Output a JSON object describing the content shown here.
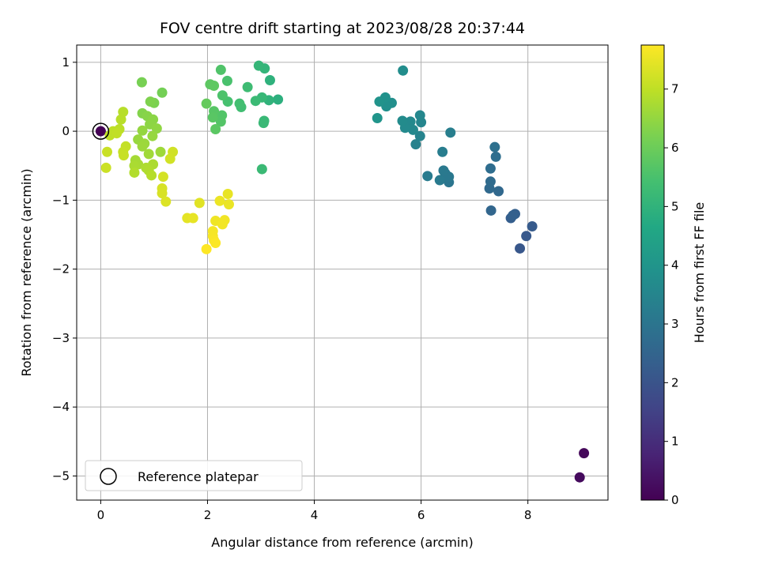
{
  "chart_data": {
    "type": "scatter",
    "title": "FOV centre drift starting at 2023/08/28 20:37:44",
    "xlabel": "Angular distance from reference (arcmin)",
    "ylabel": "Rotation from reference (arcmin)",
    "xlim": [
      -0.45,
      9.5
    ],
    "ylim": [
      -5.35,
      1.25
    ],
    "xticks": [
      "0",
      "2",
      "4",
      "6",
      "8"
    ],
    "yticks": [
      "1",
      "0",
      "−1",
      "−2",
      "−3",
      "−4",
      "−5"
    ],
    "grid": true,
    "colormap": "viridis",
    "colorbar": {
      "label": "Hours from first FF file",
      "range": [
        0,
        7.75
      ],
      "ticks": [
        "0",
        "1",
        "2",
        "3",
        "4",
        "5",
        "6",
        "7"
      ]
    },
    "legend": {
      "label": "Reference platepar",
      "placement": "lower-left"
    },
    "reference_point": {
      "x": 0,
      "y": 0
    },
    "points": [
      {
        "x": 0.0,
        "y": 0.0,
        "h": 0.0
      },
      {
        "x": 9.05,
        "y": -4.67,
        "h": 0.15
      },
      {
        "x": 8.97,
        "y": -5.02,
        "h": 0.2
      },
      {
        "x": 7.85,
        "y": -1.7,
        "h": 2.1
      },
      {
        "x": 7.97,
        "y": -1.52,
        "h": 2.15
      },
      {
        "x": 8.08,
        "y": -1.38,
        "h": 2.2
      },
      {
        "x": 7.68,
        "y": -1.26,
        "h": 2.3
      },
      {
        "x": 7.76,
        "y": -1.2,
        "h": 2.35
      },
      {
        "x": 7.72,
        "y": -1.22,
        "h": 2.4
      },
      {
        "x": 7.31,
        "y": -1.15,
        "h": 2.55
      },
      {
        "x": 7.45,
        "y": -0.87,
        "h": 2.6
      },
      {
        "x": 7.28,
        "y": -0.83,
        "h": 2.65
      },
      {
        "x": 7.3,
        "y": -0.73,
        "h": 2.7
      },
      {
        "x": 7.3,
        "y": -0.54,
        "h": 2.75
      },
      {
        "x": 7.4,
        "y": -0.37,
        "h": 2.8
      },
      {
        "x": 7.38,
        "y": -0.23,
        "h": 2.85
      },
      {
        "x": 6.52,
        "y": -0.74,
        "h": 3.0
      },
      {
        "x": 6.45,
        "y": -0.61,
        "h": 3.05
      },
      {
        "x": 6.52,
        "y": -0.66,
        "h": 3.1
      },
      {
        "x": 6.42,
        "y": -0.57,
        "h": 3.12
      },
      {
        "x": 6.35,
        "y": -0.71,
        "h": 3.15
      },
      {
        "x": 6.12,
        "y": -0.65,
        "h": 3.2
      },
      {
        "x": 6.4,
        "y": -0.3,
        "h": 3.25
      },
      {
        "x": 6.55,
        "y": -0.02,
        "h": 3.3
      },
      {
        "x": 5.9,
        "y": -0.19,
        "h": 3.4
      },
      {
        "x": 5.98,
        "y": -0.07,
        "h": 3.45
      },
      {
        "x": 6.0,
        "y": 0.13,
        "h": 3.5
      },
      {
        "x": 5.98,
        "y": 0.23,
        "h": 3.55
      },
      {
        "x": 5.85,
        "y": 0.02,
        "h": 3.6
      },
      {
        "x": 5.8,
        "y": 0.14,
        "h": 3.62
      },
      {
        "x": 5.7,
        "y": 0.05,
        "h": 3.65
      },
      {
        "x": 5.65,
        "y": 0.15,
        "h": 3.7
      },
      {
        "x": 5.66,
        "y": 0.88,
        "h": 3.75
      },
      {
        "x": 5.45,
        "y": 0.41,
        "h": 3.8
      },
      {
        "x": 5.35,
        "y": 0.36,
        "h": 3.85
      },
      {
        "x": 5.33,
        "y": 0.49,
        "h": 3.9
      },
      {
        "x": 5.22,
        "y": 0.43,
        "h": 3.95
      },
      {
        "x": 5.18,
        "y": 0.19,
        "h": 4.0
      },
      {
        "x": 3.32,
        "y": 0.46,
        "h": 4.9
      },
      {
        "x": 3.17,
        "y": 0.74,
        "h": 4.95
      },
      {
        "x": 3.15,
        "y": 0.45,
        "h": 5.0
      },
      {
        "x": 3.07,
        "y": 0.91,
        "h": 5.05
      },
      {
        "x": 2.96,
        "y": 0.95,
        "h": 5.1
      },
      {
        "x": 3.02,
        "y": 0.49,
        "h": 5.15
      },
      {
        "x": 3.06,
        "y": 0.15,
        "h": 5.18
      },
      {
        "x": 3.05,
        "y": 0.12,
        "h": 5.2
      },
      {
        "x": 3.02,
        "y": -0.55,
        "h": 5.22
      },
      {
        "x": 2.9,
        "y": 0.44,
        "h": 5.25
      },
      {
        "x": 2.75,
        "y": 0.64,
        "h": 5.3
      },
      {
        "x": 2.63,
        "y": 0.35,
        "h": 5.35
      },
      {
        "x": 2.6,
        "y": 0.4,
        "h": 5.4
      },
      {
        "x": 2.38,
        "y": 0.43,
        "h": 5.45
      },
      {
        "x": 2.37,
        "y": 0.73,
        "h": 5.5
      },
      {
        "x": 2.28,
        "y": 0.52,
        "h": 5.55
      },
      {
        "x": 2.25,
        "y": 0.89,
        "h": 5.6
      },
      {
        "x": 2.27,
        "y": 0.23,
        "h": 5.62
      },
      {
        "x": 2.25,
        "y": 0.14,
        "h": 5.65
      },
      {
        "x": 2.12,
        "y": 0.29,
        "h": 5.7
      },
      {
        "x": 2.1,
        "y": 0.2,
        "h": 5.72
      },
      {
        "x": 2.15,
        "y": 0.03,
        "h": 5.75
      },
      {
        "x": 2.05,
        "y": 0.68,
        "h": 5.78
      },
      {
        "x": 2.12,
        "y": 0.66,
        "h": 5.8
      },
      {
        "x": 1.98,
        "y": 0.4,
        "h": 5.9
      },
      {
        "x": 1.15,
        "y": 0.56,
        "h": 6.1
      },
      {
        "x": 0.77,
        "y": 0.71,
        "h": 6.15
      },
      {
        "x": 1.0,
        "y": 0.41,
        "h": 6.2
      },
      {
        "x": 0.93,
        "y": 0.43,
        "h": 6.25
      },
      {
        "x": 0.78,
        "y": 0.26,
        "h": 6.3
      },
      {
        "x": 0.87,
        "y": 0.22,
        "h": 6.35
      },
      {
        "x": 0.98,
        "y": 0.17,
        "h": 6.4
      },
      {
        "x": 0.92,
        "y": 0.1,
        "h": 6.42
      },
      {
        "x": 1.05,
        "y": 0.04,
        "h": 6.45
      },
      {
        "x": 0.78,
        "y": 0.01,
        "h": 6.5
      },
      {
        "x": 0.97,
        "y": -0.07,
        "h": 6.52
      },
      {
        "x": 0.7,
        "y": -0.12,
        "h": 6.55
      },
      {
        "x": 0.82,
        "y": -0.18,
        "h": 6.58
      },
      {
        "x": 0.78,
        "y": -0.22,
        "h": 6.6
      },
      {
        "x": 1.12,
        "y": -0.3,
        "h": 6.62
      },
      {
        "x": 0.9,
        "y": -0.33,
        "h": 6.65
      },
      {
        "x": 0.65,
        "y": -0.42,
        "h": 6.7
      },
      {
        "x": 0.7,
        "y": -0.48,
        "h": 6.72
      },
      {
        "x": 0.63,
        "y": -0.5,
        "h": 6.75
      },
      {
        "x": 0.98,
        "y": -0.48,
        "h": 6.78
      },
      {
        "x": 0.85,
        "y": -0.53,
        "h": 6.8
      },
      {
        "x": 0.9,
        "y": -0.57,
        "h": 6.82
      },
      {
        "x": 0.63,
        "y": -0.6,
        "h": 6.85
      },
      {
        "x": 0.95,
        "y": -0.64,
        "h": 6.88
      },
      {
        "x": 0.42,
        "y": 0.28,
        "h": 6.9
      },
      {
        "x": 0.38,
        "y": 0.17,
        "h": 6.92
      },
      {
        "x": 0.35,
        "y": 0.03,
        "h": 6.95
      },
      {
        "x": 0.23,
        "y": 0.0,
        "h": 6.97
      },
      {
        "x": 0.17,
        "y": -0.06,
        "h": 7.0
      },
      {
        "x": 0.3,
        "y": -0.03,
        "h": 7.02
      },
      {
        "x": 0.47,
        "y": -0.22,
        "h": 7.05
      },
      {
        "x": 0.42,
        "y": -0.3,
        "h": 7.08
      },
      {
        "x": 0.43,
        "y": -0.35,
        "h": 7.1
      },
      {
        "x": 0.12,
        "y": -0.3,
        "h": 7.12
      },
      {
        "x": 0.1,
        "y": -0.53,
        "h": 7.15
      },
      {
        "x": 1.35,
        "y": -0.3,
        "h": 7.2
      },
      {
        "x": 1.3,
        "y": -0.4,
        "h": 7.22
      },
      {
        "x": 1.17,
        "y": -0.66,
        "h": 7.25
      },
      {
        "x": 1.15,
        "y": -0.83,
        "h": 7.28
      },
      {
        "x": 1.15,
        "y": -0.9,
        "h": 7.3
      },
      {
        "x": 1.22,
        "y": -1.02,
        "h": 7.35
      },
      {
        "x": 1.85,
        "y": -1.04,
        "h": 7.4
      },
      {
        "x": 1.62,
        "y": -1.26,
        "h": 7.45
      },
      {
        "x": 1.73,
        "y": -1.26,
        "h": 7.48
      },
      {
        "x": 2.38,
        "y": -0.91,
        "h": 7.5
      },
      {
        "x": 2.4,
        "y": -1.06,
        "h": 7.52
      },
      {
        "x": 2.23,
        "y": -1.01,
        "h": 7.55
      },
      {
        "x": 2.15,
        "y": -1.3,
        "h": 7.58
      },
      {
        "x": 2.32,
        "y": -1.29,
        "h": 7.6
      },
      {
        "x": 2.28,
        "y": -1.35,
        "h": 7.62
      },
      {
        "x": 2.1,
        "y": -1.45,
        "h": 7.65
      },
      {
        "x": 2.1,
        "y": -1.52,
        "h": 7.67
      },
      {
        "x": 2.12,
        "y": -1.58,
        "h": 7.7
      },
      {
        "x": 2.15,
        "y": -1.62,
        "h": 7.72
      },
      {
        "x": 1.98,
        "y": -1.71,
        "h": 7.75
      }
    ]
  }
}
